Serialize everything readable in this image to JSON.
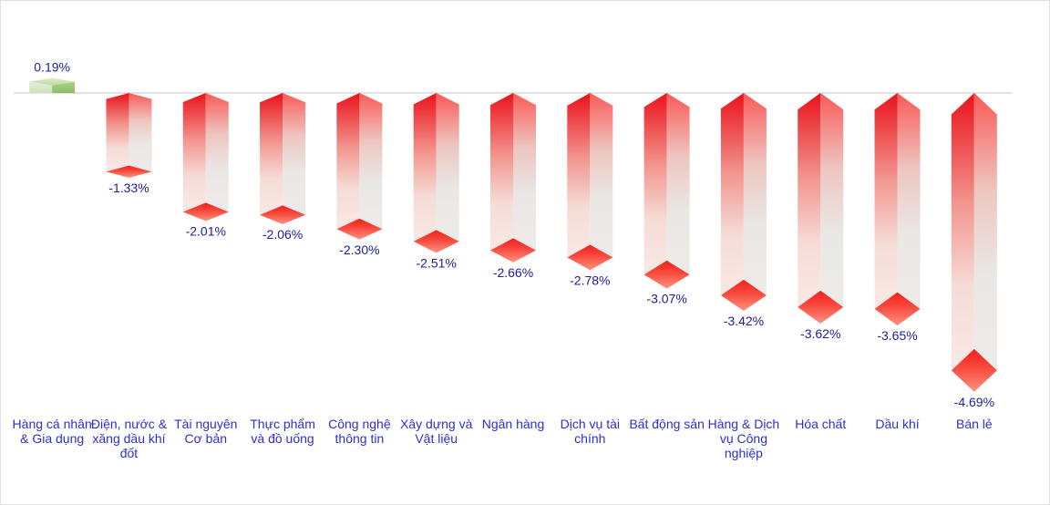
{
  "chart_data": {
    "type": "bar",
    "title": "",
    "xlabel": "",
    "ylabel": "",
    "legend": false,
    "grid": false,
    "bar_style": "3d-column-diamond-cap",
    "ylim": [
      -5,
      0.5
    ],
    "unit": "%",
    "categories": [
      "Hàng cá nhân & Gia dụng",
      "Điện, nước & xăng dầu khí đốt",
      "Tài nguyên Cơ bản",
      "Thực phẩm và đồ uống",
      "Công nghệ thông tin",
      "Xây dựng và Vật liệu",
      "Ngân hàng",
      "Dịch vụ tài chính",
      "Bất động sản",
      "Hàng & Dịch vụ Công nghiệp",
      "Hóa chất",
      "Dầu khí",
      "Bán lẻ"
    ],
    "category_lines": [
      [
        "Hàng cá nhân",
        "& Gia dụng"
      ],
      [
        "Điện, nước &",
        "xăng dầu khí",
        "đốt"
      ],
      [
        "Tài nguyên",
        "Cơ bản"
      ],
      [
        "Thực phẩm",
        "và đồ uống"
      ],
      [
        "Công nghệ",
        "thông tin"
      ],
      [
        "Xây dựng và",
        "Vật liệu"
      ],
      [
        "Ngân hàng"
      ],
      [
        "Dịch vụ tài",
        "chính"
      ],
      [
        "Bất động sản"
      ],
      [
        "Hàng & Dịch",
        "vụ Công",
        "nghiệp"
      ],
      [
        "Hóa chất"
      ],
      [
        "Dầu khí"
      ],
      [
        "Bán lẻ"
      ]
    ],
    "values": [
      0.19,
      -1.33,
      -2.01,
      -2.06,
      -2.3,
      -2.51,
      -2.66,
      -2.78,
      -3.07,
      -3.42,
      -3.62,
      -3.65,
      -4.69
    ],
    "value_labels": [
      "0.19%",
      "-1.33%",
      "-2.01%",
      "-2.06%",
      "-2.30%",
      "-2.51%",
      "-2.66%",
      "-2.78%",
      "-3.07%",
      "-3.42%",
      "-3.62%",
      "-3.65%",
      "-4.69%"
    ],
    "colors": {
      "background": "#ffffff",
      "border": "#e2e2e2",
      "axis_line": "#d9d9d9",
      "value_label": "#20209a",
      "category_label": "#2e2ed6",
      "negative_front_top": "#ea121b",
      "negative_front_mid": "#f2968f",
      "negative_front_low": "#f6dcd7",
      "negative_front_bottom": "#f8e9e5",
      "negative_side_top": "#fa5a57",
      "negative_side_mid": "#edc6c0",
      "negative_side_low": "#eae7e5",
      "negative_side_bottom": "#edeae8",
      "diamond_top": "#f51f1c",
      "diamond_mid": "#f84b3d",
      "diamond_bottom": "#fb9484",
      "positive_front_top": "#e3eed8",
      "positive_front_bottom": "#cfe3ba",
      "positive_side_top": "#acd08c",
      "positive_side_bottom": "#8cbd64",
      "positive_top_cap_light": "#dcebca",
      "positive_top_cap_dark": "#bcd8a0"
    }
  }
}
